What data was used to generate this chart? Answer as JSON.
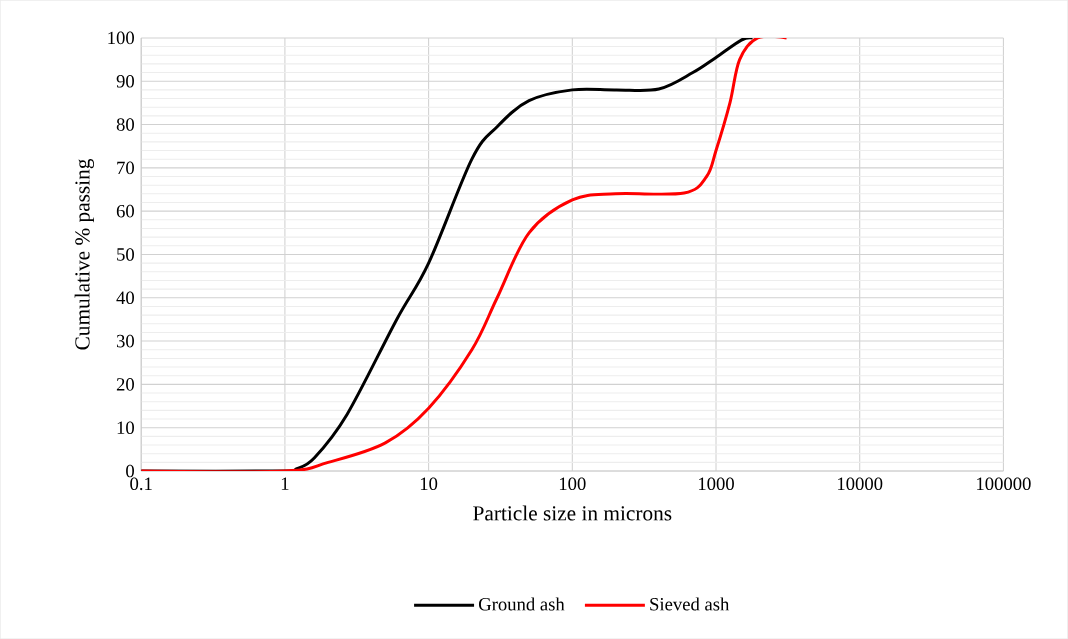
{
  "chart_data": {
    "type": "line",
    "xlabel": "Particle size in microns",
    "ylabel": "Cumulative %  passing",
    "series": [
      {
        "name": "Ground ash",
        "color": "#000000",
        "x": [
          0.1,
          1,
          1.2,
          1.6,
          2.7,
          6,
          10,
          20,
          30,
          50,
          100,
          200,
          400,
          690,
          1000,
          1500,
          1800
        ],
        "values": [
          0,
          0,
          0.5,
          3,
          13,
          35,
          48,
          72,
          79.5,
          85.5,
          88,
          88,
          88.2,
          92,
          95.5,
          99.5,
          100
        ]
      },
      {
        "name": "Sieved ash",
        "color": "#ff0000",
        "x": [
          0.1,
          1,
          2,
          5,
          10,
          20,
          30,
          50,
          100,
          200,
          600,
          860,
          1000,
          1250,
          1460,
          1950,
          3100
        ],
        "values": [
          0,
          0,
          2,
          6.5,
          14.5,
          28,
          40,
          55,
          62.6,
          64,
          64.2,
          68,
          74,
          85,
          95,
          100,
          100
        ]
      }
    ],
    "log": "x",
    "xlim": [
      0.1,
      100000
    ],
    "xticks": [
      0.1,
      1,
      10,
      100,
      1000,
      10000,
      100000
    ],
    "ylim": [
      0,
      100
    ],
    "yticks": [
      0,
      10,
      20,
      30,
      40,
      50,
      60,
      70,
      80,
      90,
      100
    ],
    "grid": true,
    "legend": "bottom",
    "marker": "none",
    "line_style": "solid"
  }
}
